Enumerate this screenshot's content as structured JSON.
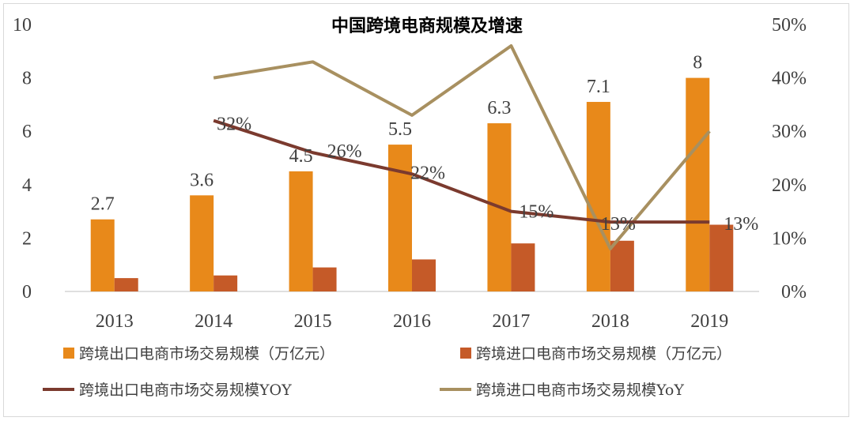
{
  "chart_data": {
    "type": "bar",
    "title": "中国跨境电商规模及增速",
    "categories": [
      "2013",
      "2014",
      "2015",
      "2016",
      "2017",
      "2018",
      "2019"
    ],
    "y_left": {
      "min": 0,
      "max": 10,
      "ticks": [
        "0",
        "2",
        "4",
        "6",
        "8",
        "10"
      ]
    },
    "y_right": {
      "min": 0,
      "max": 50,
      "ticks": [
        "0%",
        "10%",
        "20%",
        "30%",
        "40%",
        "50%"
      ]
    },
    "series": [
      {
        "name": "跨境出口电商市场交易规模（万亿元）",
        "kind": "bar",
        "axis": "left",
        "color": "#E8891A",
        "values": [
          2.7,
          3.6,
          4.5,
          5.5,
          6.3,
          7.1,
          8.0
        ],
        "labels": [
          "2.7",
          "3.6",
          "4.5",
          "5.5",
          "6.3",
          "7.1",
          "8"
        ]
      },
      {
        "name": "跨境进口电商市场交易规模（万亿元）",
        "kind": "bar",
        "axis": "left",
        "color": "#C55A28",
        "values": [
          0.5,
          0.6,
          0.9,
          1.2,
          1.8,
          1.9,
          2.5
        ]
      },
      {
        "name": "跨境出口电商市场交易规模YOY",
        "kind": "line",
        "axis": "right",
        "color": "#7B3A2E",
        "values": [
          null,
          32,
          26,
          22,
          15,
          13,
          13
        ],
        "labels": [
          "",
          "32%",
          "26%",
          "22%",
          "15%",
          "13%",
          "13%"
        ]
      },
      {
        "name": "跨境进口电商市场交易规模YoY",
        "kind": "line",
        "axis": "right",
        "color": "#A89060",
        "values": [
          null,
          40,
          43,
          33,
          46,
          8,
          30
        ]
      }
    ]
  }
}
